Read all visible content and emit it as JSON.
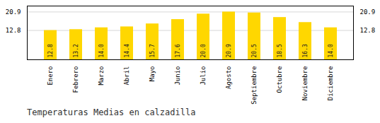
{
  "chart_data": {
    "type": "bar",
    "title": "Temperaturas Medias en calzadilla",
    "categories": [
      "Enero",
      "Febrero",
      "Marzo",
      "Abril",
      "Mayo",
      "Junio",
      "Julio",
      "Agosto",
      "Septiembre",
      "Octubre",
      "Noviembre",
      "Diciembre"
    ],
    "values": [
      12.8,
      13.2,
      14.0,
      14.4,
      15.7,
      17.6,
      20.0,
      20.9,
      20.5,
      18.5,
      16.3,
      14.0
    ],
    "value_labels": [
      "12.8",
      "13.2",
      "14.0",
      "14.4",
      "15.7",
      "17.6",
      "20.0",
      "20.9",
      "20.5",
      "18.5",
      "16.3",
      "14.0"
    ],
    "color": "#FFD700",
    "ylim": [
      0,
      23.5
    ],
    "yticks": [
      12.8,
      20.9
    ],
    "grid": true,
    "data_labels": true
  }
}
